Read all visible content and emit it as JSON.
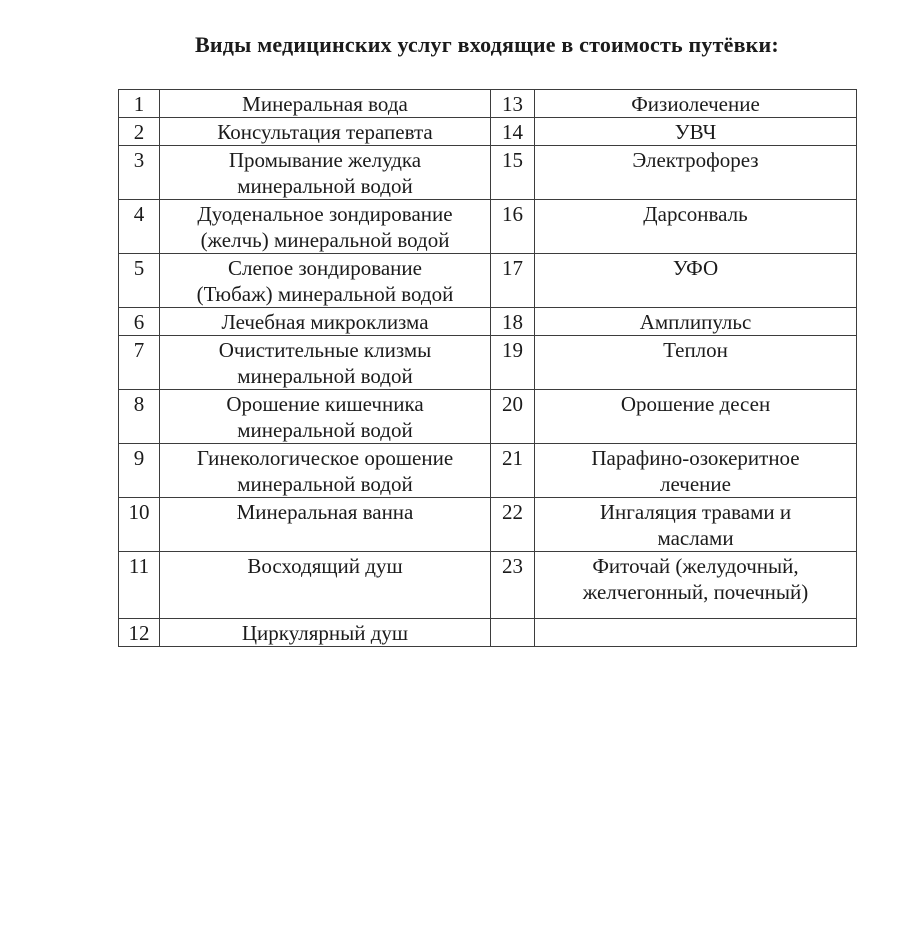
{
  "page": {
    "title": "Виды медицинских услуг входящие в стоимость путёвки:"
  },
  "table": {
    "rows": [
      {
        "left_num": "1",
        "left_service": "Минеральная вода",
        "right_num": "13",
        "right_service": "Физиолечение"
      },
      {
        "left_num": "2",
        "left_service": "Консультация терапевта",
        "right_num": "14",
        "right_service": "УВЧ"
      },
      {
        "left_num": "3",
        "left_service": "Промывание желудка\nминеральной водой",
        "right_num": "15",
        "right_service": "Электрофорез"
      },
      {
        "left_num": "4",
        "left_service": "Дуоденальное зондирование\n(желчь) минеральной водой",
        "right_num": "16",
        "right_service": "Дарсонваль"
      },
      {
        "left_num": "5",
        "left_service": "Слепое зондирование\n(Тюбаж) минеральной водой",
        "right_num": "17",
        "right_service": "УФО"
      },
      {
        "left_num": "6",
        "left_service": "Лечебная микроклизма",
        "right_num": "18",
        "right_service": "Амплипульс"
      },
      {
        "left_num": "7",
        "left_service": "Очистительные клизмы\nминеральной водой",
        "right_num": "19",
        "right_service": "Теплон"
      },
      {
        "left_num": "8",
        "left_service": "Орошение кишечника\nминеральной водой",
        "right_num": "20",
        "right_service": "Орошение десен"
      },
      {
        "left_num": "9",
        "left_service": "Гинекологическое орошение\nминеральной водой",
        "right_num": "21",
        "right_service": "Парафино-озокеритное\nлечение"
      },
      {
        "left_num": "10",
        "left_service": "Минеральная ванна",
        "right_num": "22",
        "right_service": "Ингаляция травами и\nмаслами"
      },
      {
        "left_num": "11",
        "left_service": "Восходящий душ",
        "right_num": "23",
        "right_service": "Фиточай (желудочный,\nжелчегонный, почечный)"
      },
      {
        "left_num": "12",
        "left_service": "Циркулярный душ",
        "right_num": "",
        "right_service": ""
      }
    ]
  }
}
